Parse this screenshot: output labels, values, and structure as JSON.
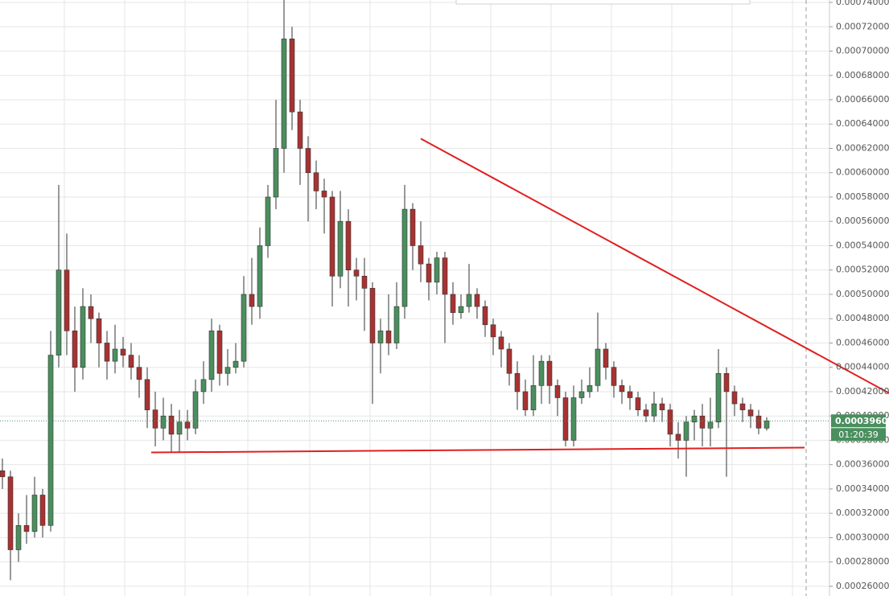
{
  "chart_data": {
    "type": "candlestick",
    "up_color": "#4a8f5e",
    "down_color": "#a83232",
    "wick_color": "#333333",
    "ylim": [
      0.000252,
      0.000742
    ],
    "yticks": [
      {
        "value": 0.00026,
        "label": "0.00026000"
      },
      {
        "value": 0.00028,
        "label": "0.00028000"
      },
      {
        "value": 0.0003,
        "label": "0.00030000"
      },
      {
        "value": 0.00032,
        "label": "0.00032000"
      },
      {
        "value": 0.00034,
        "label": "0.00034000"
      },
      {
        "value": 0.00036,
        "label": "0.00036000"
      },
      {
        "value": 0.00038,
        "label": "0.00038000"
      },
      {
        "value": 0.0004,
        "label": "0.00040000"
      },
      {
        "value": 0.00042,
        "label": "0.00042000"
      },
      {
        "value": 0.00044,
        "label": "0.00044000"
      },
      {
        "value": 0.00046,
        "label": "0.00046000"
      },
      {
        "value": 0.00048,
        "label": "0.00048000"
      },
      {
        "value": 0.0005,
        "label": "0.00050000"
      },
      {
        "value": 0.00052,
        "label": "0.00052000"
      },
      {
        "value": 0.00054,
        "label": "0.00054000"
      },
      {
        "value": 0.00056,
        "label": "0.00056000"
      },
      {
        "value": 0.00058,
        "label": "0.00058000"
      },
      {
        "value": 0.0006,
        "label": "0.00060000"
      },
      {
        "value": 0.00062,
        "label": "0.00062000"
      },
      {
        "value": 0.00064,
        "label": "0.00064000"
      },
      {
        "value": 0.00066,
        "label": "0.00066000"
      },
      {
        "value": 0.00068,
        "label": "0.00068000"
      },
      {
        "value": 0.0007,
        "label": "0.00070000"
      },
      {
        "value": 0.00072,
        "label": "0.00072000"
      },
      {
        "value": 0.00074,
        "label": "0.00074000"
      }
    ],
    "grid": true,
    "last_price": {
      "value": 0.000396,
      "label": "0.00039600",
      "color": "#4a8f5e"
    },
    "countdown": "01:20:39",
    "open": [
      0.000355,
      0.00035,
      0.00029,
      0.00031,
      0.000305,
      0.000335,
      0.00031,
      0.00045,
      0.00052,
      0.00047,
      0.00044,
      0.00049,
      0.00048,
      0.00046,
      0.000445,
      0.000455,
      0.00045,
      0.00044,
      0.00043,
      0.000405,
      0.00039,
      0.0004,
      0.000385,
      0.000395,
      0.00039,
      0.00042,
      0.00043,
      0.00047,
      0.000435,
      0.00044,
      0.000445,
      0.0005,
      0.00049,
      0.00054,
      0.00058,
      0.00062,
      0.00071,
      0.00065,
      0.00062,
      0.0006,
      0.000585,
      0.00058,
      0.000515,
      0.00056,
      0.00052,
      0.000515,
      0.000505,
      0.00046,
      0.00047,
      0.00046,
      0.00049,
      0.00057,
      0.00054,
      0.000525,
      0.00051,
      0.00053,
      0.0005,
      0.000485,
      0.00049,
      0.0005,
      0.00049,
      0.000475,
      0.000465,
      0.000455,
      0.000435,
      0.00042,
      0.000405,
      0.000425,
      0.000445,
      0.000425,
      0.000415,
      0.00038,
      0.000415,
      0.00042,
      0.000425,
      0.000455,
      0.00044,
      0.000425,
      0.00042,
      0.000415,
      0.000405,
      0.0004,
      0.00041,
      0.000405,
      0.000385,
      0.00038,
      0.000395,
      0.0004,
      0.00039,
      0.000395,
      0.000435,
      0.00042,
      0.00041,
      0.000405,
      0.0004,
      0.00039
    ],
    "high": [
      0.000365,
      0.000355,
      0.00032,
      0.000335,
      0.00035,
      0.00034,
      0.00047,
      0.00059,
      0.00055,
      0.00049,
      0.000505,
      0.0005,
      0.000485,
      0.00047,
      0.000475,
      0.000465,
      0.00046,
      0.00045,
      0.00044,
      0.00042,
      0.000415,
      0.00041,
      0.000405,
      0.000405,
      0.00043,
      0.000445,
      0.00048,
      0.000475,
      0.000455,
      0.00046,
      0.000515,
      0.00053,
      0.000555,
      0.00059,
      0.00066,
      0.000742,
      0.00072,
      0.00066,
      0.00063,
      0.00061,
      0.000595,
      0.000585,
      0.000585,
      0.00057,
      0.00053,
      0.00053,
      0.00051,
      0.00048,
      0.0005,
      0.00051,
      0.00059,
      0.000575,
      0.00056,
      0.00053,
      0.000535,
      0.000535,
      0.00051,
      0.0005,
      0.000525,
      0.000505,
      0.000495,
      0.00048,
      0.00047,
      0.00046,
      0.000445,
      0.00043,
      0.00045,
      0.00045,
      0.00045,
      0.00043,
      0.00042,
      0.000425,
      0.00043,
      0.00044,
      0.000485,
      0.00046,
      0.000445,
      0.00043,
      0.000425,
      0.00042,
      0.00041,
      0.00042,
      0.000415,
      0.00041,
      0.000395,
      0.0004,
      0.000405,
      0.00041,
      0.000415,
      0.000455,
      0.00044,
      0.000425,
      0.000415,
      0.00041,
      0.000405,
      0.000399
    ],
    "low": [
      0.00034,
      0.000265,
      0.00028,
      0.000295,
      0.0003,
      0.0003,
      0.000305,
      0.00044,
      0.00045,
      0.00042,
      0.00043,
      0.00046,
      0.00044,
      0.00043,
      0.000435,
      0.00044,
      0.00043,
      0.000415,
      0.00039,
      0.000375,
      0.00038,
      0.00037,
      0.00037,
      0.00038,
      0.000385,
      0.00041,
      0.00042,
      0.000425,
      0.000425,
      0.000435,
      0.00044,
      0.000475,
      0.00048,
      0.00053,
      0.00057,
      0.0006,
      0.000635,
      0.00059,
      0.00056,
      0.00057,
      0.00055,
      0.00049,
      0.000505,
      0.00049,
      0.000495,
      0.00047,
      0.00041,
      0.000435,
      0.00045,
      0.000455,
      0.00048,
      0.00052,
      0.00051,
      0.000495,
      0.0005,
      0.00046,
      0.000475,
      0.00048,
      0.000485,
      0.00048,
      0.000465,
      0.00045,
      0.00044,
      0.000425,
      0.000405,
      0.0004,
      0.0004,
      0.00041,
      0.00041,
      0.0004,
      0.000375,
      0.000375,
      0.00041,
      0.000415,
      0.00042,
      0.00043,
      0.000415,
      0.00041,
      0.000405,
      0.0004,
      0.000395,
      0.000395,
      0.000395,
      0.000375,
      0.000365,
      0.00035,
      0.00038,
      0.000375,
      0.000375,
      0.00039,
      0.00035,
      0.0004,
      0.000395,
      0.00039,
      0.000385,
      0.000388
    ],
    "close": [
      0.00035,
      0.00029,
      0.00031,
      0.000305,
      0.000335,
      0.00031,
      0.00045,
      0.00052,
      0.00047,
      0.00044,
      0.00049,
      0.00048,
      0.00046,
      0.000445,
      0.000455,
      0.00045,
      0.00044,
      0.00043,
      0.000405,
      0.00039,
      0.0004,
      0.000385,
      0.000395,
      0.00039,
      0.00042,
      0.00043,
      0.00047,
      0.000435,
      0.00044,
      0.000445,
      0.0005,
      0.00049,
      0.00054,
      0.00058,
      0.00062,
      0.00071,
      0.00065,
      0.00062,
      0.0006,
      0.000585,
      0.00058,
      0.000515,
      0.00056,
      0.00052,
      0.000515,
      0.000505,
      0.00046,
      0.00047,
      0.00046,
      0.00049,
      0.00057,
      0.00054,
      0.000525,
      0.00051,
      0.00053,
      0.0005,
      0.000485,
      0.00049,
      0.0005,
      0.00049,
      0.000475,
      0.000465,
      0.000455,
      0.000435,
      0.00042,
      0.000405,
      0.000425,
      0.000445,
      0.000425,
      0.000415,
      0.00038,
      0.000415,
      0.00042,
      0.000425,
      0.000455,
      0.00044,
      0.000425,
      0.00042,
      0.000415,
      0.000405,
      0.0004,
      0.00041,
      0.000405,
      0.000385,
      0.00038,
      0.000395,
      0.0004,
      0.00039,
      0.000395,
      0.000435,
      0.00042,
      0.00041,
      0.000405,
      0.0004,
      0.00039,
      0.000396
    ],
    "trendlines": [
      {
        "color": "#e02020",
        "points": [
          [
            52,
            0.000628
          ],
          [
            128.5,
            0.000353
          ]
        ]
      },
      {
        "color": "#e02020",
        "points": [
          [
            18.5,
            0.00037
          ],
          [
            99.7,
            0.000374
          ]
        ]
      }
    ]
  }
}
